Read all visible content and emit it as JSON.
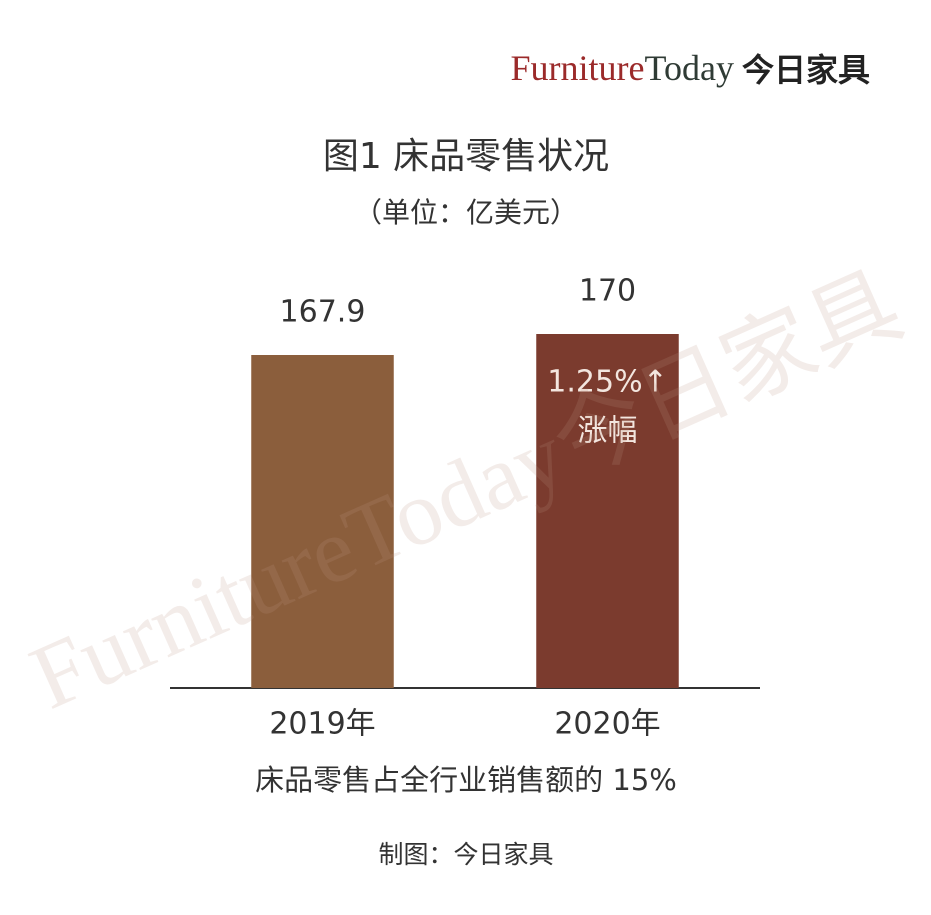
{
  "chart_data": {
    "type": "bar",
    "title": "图1  床品零售状况",
    "subtitle": "（单位：亿美元）",
    "categories": [
      "2019年",
      "2020年"
    ],
    "values": [
      167.9,
      170
    ],
    "colors": [
      "#8b5e3c",
      "#7b3b2e"
    ],
    "ylim": [
      134.6,
      174
    ],
    "annotation": [
      "1.25%↑",
      "涨幅"
    ],
    "note": "床品零售占全行业销售额的 15%",
    "source": "制图：今日家具"
  },
  "logo": {
    "brand_1": "Furniture",
    "brand_2": "Today",
    "brand_3": "今日家具"
  },
  "watermark": "FurnitureToday今日家具"
}
